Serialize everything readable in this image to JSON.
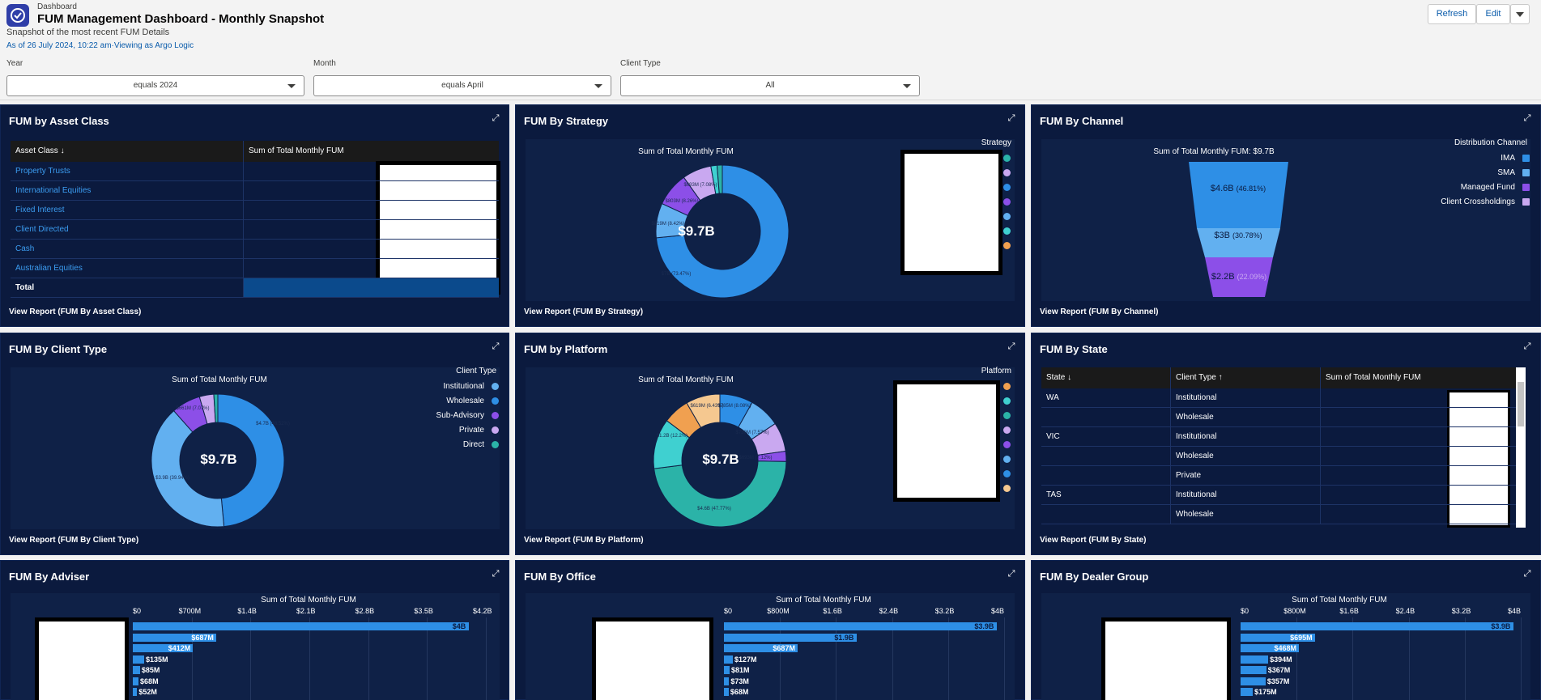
{
  "header": {
    "breadcrumb": "Dashboard",
    "title": "FUM Management Dashboard - Monthly Snapshot",
    "subtitle": "Snapshot of the most recent FUM Details",
    "as_of": "As of 26 July 2024, 10:22 am·Viewing as Argo Logic",
    "buttons": {
      "refresh": "Refresh",
      "edit": "Edit"
    }
  },
  "filters": [
    {
      "label": "Year",
      "value": "equals 2024"
    },
    {
      "label": "Month",
      "value": "equals April"
    },
    {
      "label": "Client Type",
      "value": "All"
    }
  ],
  "panels": {
    "asset_class": {
      "title": "FUM by Asset Class",
      "headers": [
        "Asset Class",
        "Sum of Total Monthly FUM"
      ],
      "sort_icon": "↓",
      "rows": [
        "Property Trusts",
        "International Equities",
        "Fixed Interest",
        "Client Directed",
        "Cash",
        "Australian Equities"
      ],
      "total_label": "Total",
      "view_report": "View Report (FUM By Asset Class)"
    },
    "strategy": {
      "title": "FUM By Strategy",
      "chart_title": "Sum of Total Monthly FUM",
      "legend_title": "Strategy",
      "center": "$9.7B",
      "labels": [
        "$7B (73.47%)",
        "$819M (8.42%)",
        "$803M (8.26%)",
        "$693M (7.08%)"
      ],
      "legend_colors": [
        "#2bb3a8",
        "#c9a8f0",
        "#2e8fe6",
        "#8c4fe8",
        "#62b0f0",
        "#3fd0d0",
        "#f0a050"
      ],
      "view_report": "View Report (FUM By Strategy)"
    },
    "channel": {
      "title": "FUM By Channel",
      "chart_title": "Sum of Total Monthly FUM: $9.7B",
      "legend_title": "Distribution Channel",
      "legend": [
        {
          "label": "IMA",
          "color": "#2e8fe6"
        },
        {
          "label": "SMA",
          "color": "#62b0f0"
        },
        {
          "label": "Managed Fund",
          "color": "#8c4fe8"
        },
        {
          "label": "Client Crossholdings",
          "color": "#c9a8f0"
        }
      ],
      "stages": [
        {
          "value": "$4.6B",
          "pct": "(46.81%)"
        },
        {
          "value": "$3B",
          "pct": "(30.78%)"
        },
        {
          "value": "$2.2B",
          "pct": "(22.09%)"
        }
      ],
      "view_report": "View Report (FUM By Channel)"
    },
    "client_type": {
      "title": "FUM By Client Type",
      "chart_title": "Sum of Total Monthly FUM",
      "legend_title": "Client Type",
      "legend": [
        {
          "label": "Institutional",
          "color": "#62b0f0"
        },
        {
          "label": "Wholesale",
          "color": "#2e8fe6"
        },
        {
          "label": "Sub-Advisory",
          "color": "#8c4fe8"
        },
        {
          "label": "Private",
          "color": "#c9a8f0"
        },
        {
          "label": "Direct",
          "color": "#2bb3a8"
        }
      ],
      "center": "$9.7B",
      "labels": [
        "$4.7B (48.52%)",
        "$3.9B (39.94%)",
        "$661M (7.07%)"
      ],
      "view_report": "View Report (FUM By Client Type)"
    },
    "platform": {
      "title": "FUM by Platform",
      "chart_title": "Sum of Total Monthly FUM",
      "legend_title": "Platform",
      "center": "$9.7B",
      "labels": [
        "$4.6B (47.77%)",
        "$1.2B (12.2%)",
        "$619M (6.43%)",
        "$785M (8.08%)",
        "$730M (7.57%)",
        "$693M (7.12%)"
      ],
      "legend_colors": [
        "#f0a050",
        "#3fd0d0",
        "#2bb3a8",
        "#c9a8f0",
        "#8c4fe8",
        "#62b0f0",
        "#2e8fe6",
        "#f5c890"
      ],
      "view_report": "View Report (FUM By Platform)"
    },
    "state": {
      "title": "FUM By State",
      "headers": [
        "State",
        "Client Type",
        "Sum of Total Monthly FUM"
      ],
      "rows": [
        {
          "state": "WA",
          "type": "Institutional"
        },
        {
          "state": "",
          "type": "Wholesale"
        },
        {
          "state": "VIC",
          "type": "Institutional"
        },
        {
          "state": "",
          "type": "Wholesale"
        },
        {
          "state": "",
          "type": "Private"
        },
        {
          "state": "TAS",
          "type": "Institutional"
        },
        {
          "state": "",
          "type": "Wholesale"
        }
      ],
      "view_report": "View Report (FUM By State)"
    },
    "adviser": {
      "title": "FUM By Adviser",
      "chart_title": "Sum of Total Monthly FUM",
      "ticks": [
        "$0",
        "$700M",
        "$1.4B",
        "$2.1B",
        "$2.8B",
        "$3.5B",
        "$4.2B"
      ],
      "bar_labels": [
        "$4B",
        "$687M",
        "$412M",
        "$135M",
        "$85M",
        "$68M",
        "$52M"
      ]
    },
    "office": {
      "title": "FUM By Office",
      "chart_title": "Sum of Total Monthly FUM",
      "ticks": [
        "$0",
        "$800M",
        "$1.6B",
        "$2.4B",
        "$3.2B",
        "$4B"
      ],
      "bar_labels": [
        "$3.9B",
        "$1.9B",
        "$687M",
        "$127M",
        "$81M",
        "$73M",
        "$68M"
      ]
    },
    "dealer": {
      "title": "FUM By Dealer Group",
      "chart_title": "Sum of Total Monthly FUM",
      "ticks": [
        "$0",
        "$800M",
        "$1.6B",
        "$2.4B",
        "$3.2B",
        "$4B"
      ],
      "bar_labels": [
        "$3.9B",
        "$695M",
        "$468M",
        "$394M",
        "$367M",
        "$357M",
        "$175M"
      ]
    }
  },
  "chart_data": [
    {
      "type": "bar",
      "title": "Sum of Total Monthly FUM",
      "orientation": "horizontal",
      "values_millions": [
        4000,
        687,
        412,
        135,
        85,
        68,
        52
      ],
      "xlim": [
        0,
        4200
      ]
    },
    {
      "type": "bar",
      "title": "Sum of Total Monthly FUM",
      "orientation": "horizontal",
      "values_millions": [
        3900,
        1900,
        687,
        127,
        81,
        73,
        68
      ],
      "xlim": [
        0,
        4000
      ]
    },
    {
      "type": "bar",
      "title": "Sum of Total Monthly FUM",
      "orientation": "horizontal",
      "values_millions": [
        3900,
        695,
        468,
        394,
        367,
        357,
        175
      ],
      "xlim": [
        0,
        4000
      ]
    }
  ]
}
